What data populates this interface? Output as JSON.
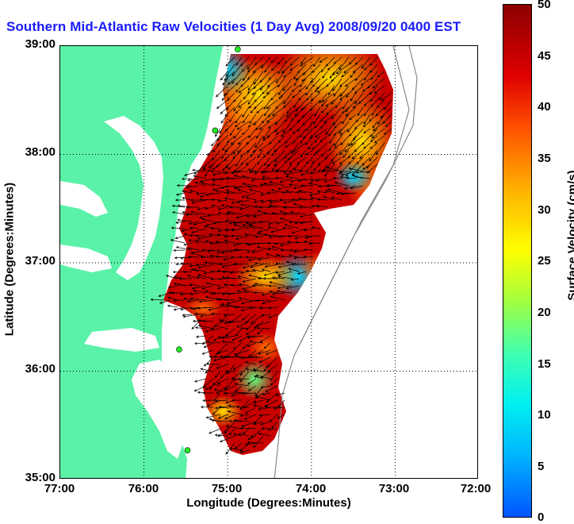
{
  "title": "Southern Mid-Atlantic Raw Velocities (1 Day Avg) 2008/09/20 0400 EST",
  "axes": {
    "xlabel": "Longitude (Degrees:Minutes)",
    "ylabel": "Latitude (Degrees:Minutes)",
    "x_ticks": [
      "77:00",
      "76:00",
      "75:00",
      "74:00",
      "73:00",
      "72:00"
    ],
    "y_ticks": [
      "39:00",
      "38:00",
      "37:00",
      "36:00",
      "35:00"
    ]
  },
  "colorbar": {
    "label": "Surface Velocity (cm/s)",
    "ticks": [
      "50",
      "45",
      "40",
      "35",
      "30",
      "25",
      "20",
      "15",
      "10",
      "5",
      "0"
    ],
    "range": [
      0,
      50
    ]
  },
  "colors": {
    "land": "#5af2a8",
    "title": "#1a1aff",
    "stations": "#22ee22"
  },
  "map": {
    "lon_range": [
      -77,
      -72
    ],
    "lat_range": [
      35,
      39
    ],
    "grid": true,
    "stations": [
      {
        "lon": -74.88,
        "lat": 38.97
      },
      {
        "lon": -75.15,
        "lat": 38.22
      },
      {
        "lon": -75.58,
        "lat": 36.2
      },
      {
        "lon": -75.48,
        "lat": 35.27
      }
    ]
  }
}
